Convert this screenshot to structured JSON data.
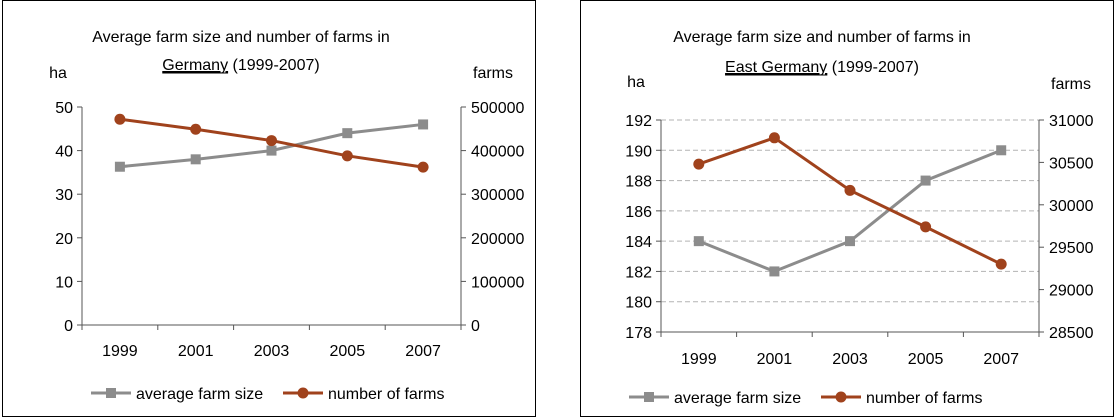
{
  "chart_data": [
    {
      "type": "line",
      "title_line1": "Average farm size and number of farms in",
      "title_region": "Germany",
      "title_years": " (1999-2007)",
      "ylabel_left": "ha",
      "ylabel_right": "farms",
      "categories": [
        "1999",
        "2001",
        "2003",
        "2005",
        "2007"
      ],
      "ylim_left": [
        0,
        50
      ],
      "yticks_left": [
        0,
        10,
        20,
        30,
        40,
        50
      ],
      "ylim_right": [
        0,
        500000
      ],
      "yticks_right": [
        0,
        100000,
        200000,
        300000,
        400000,
        500000
      ],
      "grid": false,
      "legend_position": "bottom",
      "series": [
        {
          "name": "average farm size",
          "axis": "left",
          "color": "#8c8c8c",
          "marker": "square",
          "values": [
            36.3,
            38,
            40,
            44,
            46
          ]
        },
        {
          "name": "number of farms",
          "axis": "right",
          "color": "#a0421c",
          "marker": "circle",
          "values": [
            472000,
            449000,
            423000,
            388000,
            362000
          ]
        }
      ]
    },
    {
      "type": "line",
      "title_line1": "Average farm size and number of farms in",
      "title_region": "East Germany",
      "title_years": " (1999-2007)",
      "ylabel_left": "ha",
      "ylabel_right": "farms",
      "categories": [
        "1999",
        "2001",
        "2003",
        "2005",
        "2007"
      ],
      "ylim_left": [
        178,
        192
      ],
      "yticks_left": [
        178,
        180,
        182,
        184,
        186,
        188,
        190,
        192
      ],
      "ylim_right": [
        28500,
        31000
      ],
      "yticks_right": [
        28500,
        29000,
        29500,
        30000,
        30500,
        31000
      ],
      "grid": true,
      "legend_position": "bottom",
      "series": [
        {
          "name": "average farm size",
          "axis": "left",
          "color": "#8c8c8c",
          "marker": "square",
          "values": [
            184,
            182,
            184,
            188,
            190
          ]
        },
        {
          "name": "number of farms",
          "axis": "right",
          "color": "#a0421c",
          "marker": "circle",
          "values": [
            30480,
            30790,
            30170,
            29740,
            29300
          ]
        }
      ]
    }
  ]
}
